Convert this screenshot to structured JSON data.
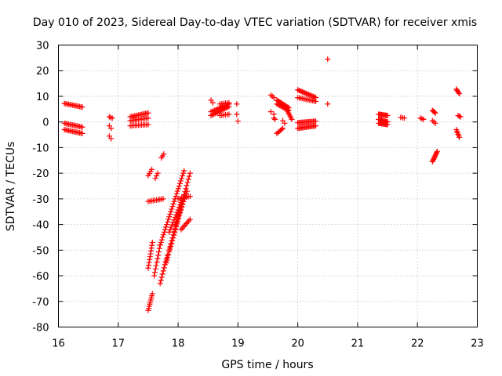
{
  "chart_data": {
    "type": "scatter",
    "title": "Day 010 of 2023, Sidereal Day-to-day VTEC variation (SDTVAR) for receiver xmis",
    "xlabel": "GPS time / hours",
    "ylabel": "SDTVAR / TECUs",
    "xlim": [
      16,
      23
    ],
    "ylim": [
      -80,
      30
    ],
    "xticks": [
      "16",
      "17",
      "18",
      "19",
      "20",
      "21",
      "22",
      "23"
    ],
    "yticks": [
      "-80",
      "-70",
      "-60",
      "-50",
      "-40",
      "-30",
      "-20",
      "-10",
      "0",
      "10",
      "20",
      "30"
    ],
    "grid": true,
    "marker": "+",
    "color": "#ff0000",
    "segments": [
      {
        "x0": 16.1,
        "y0": 7.2,
        "x1": 16.4,
        "y1": 5.8,
        "n": 14
      },
      {
        "x0": 16.1,
        "y0": -0.5,
        "x1": 16.4,
        "y1": -2.0,
        "n": 14
      },
      {
        "x0": 16.1,
        "y0": -3.0,
        "x1": 16.4,
        "y1": -4.5,
        "n": 14
      },
      {
        "x0": 16.85,
        "y0": 2.0,
        "x1": 16.9,
        "y1": 1.5,
        "n": 3
      },
      {
        "x0": 16.85,
        "y0": -1.5,
        "x1": 16.88,
        "y1": -2.5,
        "n": 2
      },
      {
        "x0": 16.85,
        "y0": -5.5,
        "x1": 16.88,
        "y1": -6.5,
        "n": 2
      },
      {
        "x0": 17.2,
        "y0": 2.0,
        "x1": 17.5,
        "y1": 3.5,
        "n": 14
      },
      {
        "x0": 17.2,
        "y0": 0.5,
        "x1": 17.5,
        "y1": 1.5,
        "n": 12
      },
      {
        "x0": 17.2,
        "y0": -1.5,
        "x1": 17.5,
        "y1": -1.0,
        "n": 12
      },
      {
        "x0": 17.5,
        "y0": -73.5,
        "x1": 17.57,
        "y1": -67.0,
        "n": 9
      },
      {
        "x0": 17.5,
        "y0": -57.0,
        "x1": 17.57,
        "y1": -47.0,
        "n": 10
      },
      {
        "x0": 17.5,
        "y0": -21.0,
        "x1": 17.56,
        "y1": -18.5,
        "n": 4
      },
      {
        "x0": 17.5,
        "y0": -31.0,
        "x1": 17.75,
        "y1": -30.0,
        "n": 10
      },
      {
        "x0": 17.6,
        "y0": -60.0,
        "x1": 17.7,
        "y1": -48.0,
        "n": 10
      },
      {
        "x0": 17.62,
        "y0": -22.0,
        "x1": 17.66,
        "y1": -20.0,
        "n": 3
      },
      {
        "x0": 17.72,
        "y0": -14.0,
        "x1": 17.76,
        "y1": -12.5,
        "n": 3
      },
      {
        "x0": 17.7,
        "y0": -63.0,
        "x1": 17.82,
        "y1": -52.0,
        "n": 10
      },
      {
        "x0": 17.7,
        "y0": -48.0,
        "x1": 18.1,
        "y1": -19.0,
        "n": 30
      },
      {
        "x0": 17.8,
        "y0": -55.0,
        "x1": 18.1,
        "y1": -30.0,
        "n": 24
      },
      {
        "x0": 17.85,
        "y0": -50.0,
        "x1": 18.2,
        "y1": -20.0,
        "n": 26
      },
      {
        "x0": 17.85,
        "y0": -43.0,
        "x1": 18.1,
        "y1": -28.5,
        "n": 16
      },
      {
        "x0": 17.95,
        "y0": -40.0,
        "x1": 18.15,
        "y1": -27.0,
        "n": 14
      },
      {
        "x0": 18.05,
        "y0": -42.0,
        "x1": 18.2,
        "y1": -38.0,
        "n": 8
      },
      {
        "x0": 18.0,
        "y0": -30.0,
        "x1": 18.2,
        "y1": -29.0,
        "n": 8
      },
      {
        "x0": 18.55,
        "y0": 8.5,
        "x1": 18.58,
        "y1": 7.5,
        "n": 2
      },
      {
        "x0": 18.55,
        "y0": 2.5,
        "x1": 18.85,
        "y1": 6.0,
        "n": 14
      },
      {
        "x0": 18.55,
        "y0": 4.0,
        "x1": 18.85,
        "y1": 7.0,
        "n": 12
      },
      {
        "x0": 18.7,
        "y0": 7.0,
        "x1": 18.85,
        "y1": 7.5,
        "n": 6
      },
      {
        "x0": 18.7,
        "y0": 2.5,
        "x1": 18.85,
        "y1": 3.0,
        "n": 6
      },
      {
        "x0": 18.98,
        "y0": 7.0,
        "x1": 18.98,
        "y1": 7.0,
        "n": 1
      },
      {
        "x0": 18.98,
        "y0": 3.0,
        "x1": 18.98,
        "y1": 3.0,
        "n": 1
      },
      {
        "x0": 19.0,
        "y0": 0.3,
        "x1": 19.0,
        "y1": 0.3,
        "n": 1
      },
      {
        "x0": 19.55,
        "y0": 10.5,
        "x1": 19.6,
        "y1": 9.5,
        "n": 3
      },
      {
        "x0": 19.55,
        "y0": 4.0,
        "x1": 19.6,
        "y1": 3.0,
        "n": 2
      },
      {
        "x0": 19.6,
        "y0": 1.5,
        "x1": 19.62,
        "y1": 1.0,
        "n": 2
      },
      {
        "x0": 19.65,
        "y0": 8.5,
        "x1": 19.85,
        "y1": 5.5,
        "n": 12
      },
      {
        "x0": 19.65,
        "y0": 7.0,
        "x1": 19.85,
        "y1": 4.5,
        "n": 10
      },
      {
        "x0": 19.65,
        "y0": -4.5,
        "x1": 19.75,
        "y1": -2.5,
        "n": 6
      },
      {
        "x0": 19.75,
        "y0": 0.5,
        "x1": 19.78,
        "y1": -0.5,
        "n": 2
      },
      {
        "x0": 19.8,
        "y0": 5.5,
        "x1": 19.9,
        "y1": 1.0,
        "n": 8
      },
      {
        "x0": 20.0,
        "y0": 12.5,
        "x1": 20.3,
        "y1": 9.5,
        "n": 16
      },
      {
        "x0": 20.0,
        "y0": 9.5,
        "x1": 20.3,
        "y1": 8.0,
        "n": 12
      },
      {
        "x0": 20.0,
        "y0": -0.3,
        "x1": 20.3,
        "y1": 0.3,
        "n": 16
      },
      {
        "x0": 20.0,
        "y0": -2.5,
        "x1": 20.3,
        "y1": -1.5,
        "n": 16
      },
      {
        "x0": 20.5,
        "y0": 24.5,
        "x1": 20.5,
        "y1": 24.5,
        "n": 1
      },
      {
        "x0": 20.5,
        "y0": 7.0,
        "x1": 20.5,
        "y1": 7.0,
        "n": 1
      },
      {
        "x0": 21.35,
        "y0": 3.0,
        "x1": 21.5,
        "y1": 2.5,
        "n": 10
      },
      {
        "x0": 21.35,
        "y0": 1.0,
        "x1": 21.5,
        "y1": 0.0,
        "n": 10
      },
      {
        "x0": 21.35,
        "y0": -0.5,
        "x1": 21.5,
        "y1": -1.0,
        "n": 10
      },
      {
        "x0": 21.72,
        "y0": 1.8,
        "x1": 21.78,
        "y1": 1.5,
        "n": 3
      },
      {
        "x0": 22.05,
        "y0": 1.5,
        "x1": 22.1,
        "y1": 1.0,
        "n": 3
      },
      {
        "x0": 22.25,
        "y0": 4.5,
        "x1": 22.3,
        "y1": 3.5,
        "n": 4
      },
      {
        "x0": 22.25,
        "y0": 0.5,
        "x1": 22.3,
        "y1": -0.5,
        "n": 3
      },
      {
        "x0": 22.25,
        "y0": -15.5,
        "x1": 22.33,
        "y1": -11.5,
        "n": 10
      },
      {
        "x0": 22.65,
        "y0": 12.8,
        "x1": 22.7,
        "y1": 11.0,
        "n": 5
      },
      {
        "x0": 22.68,
        "y0": 2.5,
        "x1": 22.72,
        "y1": 2.0,
        "n": 3
      },
      {
        "x0": 22.65,
        "y0": -3.0,
        "x1": 22.7,
        "y1": -6.0,
        "n": 6
      }
    ]
  }
}
